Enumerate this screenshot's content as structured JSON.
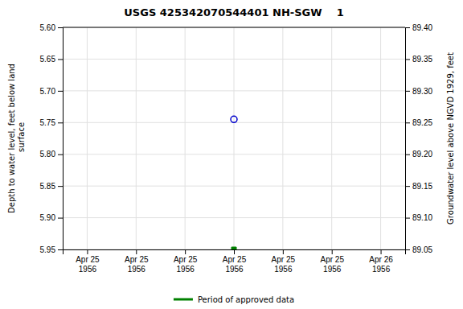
{
  "chart_data": {
    "type": "scatter",
    "title": "USGS 425342070544401 NH-SGW    1",
    "ylabel": "Depth to water level, feet below land\n surface",
    "y2label": "Groundwater level above NGVD 1929, feet",
    "categories": [
      "Apr 25\n1956",
      "Apr 25\n1956",
      "Apr 25\n1956",
      "Apr 25\n1956",
      "Apr 25\n1956",
      "Apr 25\n1956",
      "Apr 26\n1956"
    ],
    "series": [
      {
        "color": "#0000cc",
        "marker": "circle-open",
        "values": [
          null,
          null,
          null,
          5.745,
          null,
          null,
          null
        ]
      },
      {
        "name": "Period of approved data",
        "color": "#008000",
        "marker": "square",
        "values": [
          null,
          null,
          null,
          5.95,
          null,
          null,
          null
        ]
      }
    ],
    "ylim": [
      5.95,
      5.6
    ],
    "yticks": [
      {
        "value": 5.6,
        "label": "5.60"
      },
      5.65,
      {
        "value": 5.7,
        "label": "5.70"
      },
      5.75,
      {
        "value": 5.8,
        "label": "5.80"
      },
      5.85,
      {
        "value": 5.9,
        "label": "5.90"
      },
      5.95
    ],
    "y2lim": [
      89.05,
      89.4
    ],
    "y2ticks": [
      {
        "value": 89.4,
        "label": "89.40"
      },
      89.35,
      {
        "value": 89.3,
        "label": "89.30"
      },
      89.25,
      {
        "value": 89.2,
        "label": "89.20"
      },
      89.15,
      {
        "value": 89.1,
        "label": "89.10"
      },
      89.05
    ],
    "grid": true,
    "legend": "bottom"
  }
}
